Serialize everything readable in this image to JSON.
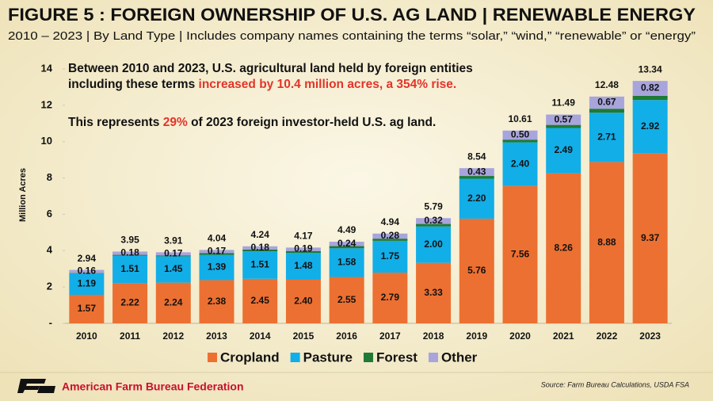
{
  "chart_data": {
    "type": "stacked-bar",
    "title": "FIGURE 5 : FOREIGN OWNERSHIP OF U.S. AG LAND | RENEWABLE ENERGY",
    "subtitle": "2010 – 2023 | By Land Type | Includes company names containing the terms “solar,” “wind,” “renewable” or “energy”",
    "y_label": "Million Acres",
    "annotations": [
      [
        "Between 2010 and 2023, U.S. agricultural land held by foreign entities"
      ],
      [
        "including these terms ",
        "increased by 10.4 million acres, a 354% rise."
      ],
      [
        "This represents ",
        "29%",
        " of 2023 foreign investor-held U.S. ag land."
      ]
    ],
    "highlight_color": "#e3342a",
    "categories": [
      "2010",
      "2011",
      "2012",
      "2013",
      "2014",
      "2015",
      "2016",
      "2017",
      "2018",
      "2019",
      "2020",
      "2021",
      "2022",
      "2023"
    ],
    "series": [
      {
        "name": "Cropland",
        "color": "#ec7031",
        "values": [
          1.57,
          2.22,
          2.24,
          2.38,
          2.45,
          2.4,
          2.55,
          2.79,
          3.33,
          5.76,
          7.56,
          8.26,
          8.88,
          9.37
        ],
        "value_labels": [
          "1.57",
          "2.22",
          "2.24",
          "2.38",
          "2.45",
          "2.40",
          "2.55",
          "2.79",
          "3.33",
          "5.76",
          "7.56",
          "8.26",
          "8.88",
          "9.37"
        ]
      },
      {
        "name": "Pasture",
        "color": "#12aee8",
        "values": [
          1.19,
          1.51,
          1.45,
          1.39,
          1.51,
          1.48,
          1.58,
          1.75,
          2.0,
          2.2,
          2.4,
          2.49,
          2.71,
          2.92
        ],
        "value_labels": [
          "1.19",
          "1.51",
          "1.45",
          "1.39",
          "1.51",
          "1.48",
          "1.58",
          "1.75",
          "2.00",
          "2.20",
          "2.40",
          "2.49",
          "2.71",
          "2.92"
        ]
      },
      {
        "name": "Forest",
        "color": "#1e7a35",
        "values": [
          0.02,
          0.04,
          0.05,
          0.1,
          0.1,
          0.1,
          0.12,
          0.12,
          0.14,
          0.15,
          0.15,
          0.17,
          0.22,
          0.23
        ]
      },
      {
        "name": "Other",
        "color": "#a8a4dc",
        "values": [
          0.16,
          0.18,
          0.17,
          0.17,
          0.18,
          0.19,
          0.24,
          0.28,
          0.32,
          0.43,
          0.5,
          0.57,
          0.67,
          0.82
        ],
        "value_labels": [
          "0.16",
          "0.18",
          "0.17",
          "0.17",
          "0.18",
          "0.19",
          "0.24",
          "0.28",
          "0.32",
          "0.43",
          "0.50",
          "0.57",
          "0.67",
          "0.82"
        ]
      }
    ],
    "totals": [
      2.94,
      3.95,
      3.91,
      4.04,
      4.24,
      4.17,
      4.49,
      4.94,
      5.79,
      8.54,
      10.61,
      11.49,
      12.48,
      13.34
    ],
    "ylim": [
      0,
      14
    ],
    "yticks": [
      {
        "value": 0,
        "label": "-"
      },
      2,
      4,
      6,
      8,
      10,
      12,
      14
    ],
    "grid": false,
    "legend": "bottom"
  },
  "footer": {
    "organization": "American Farm Bureau Federation",
    "source": "Source: Farm Bureau Calculations, USDA FSA"
  }
}
